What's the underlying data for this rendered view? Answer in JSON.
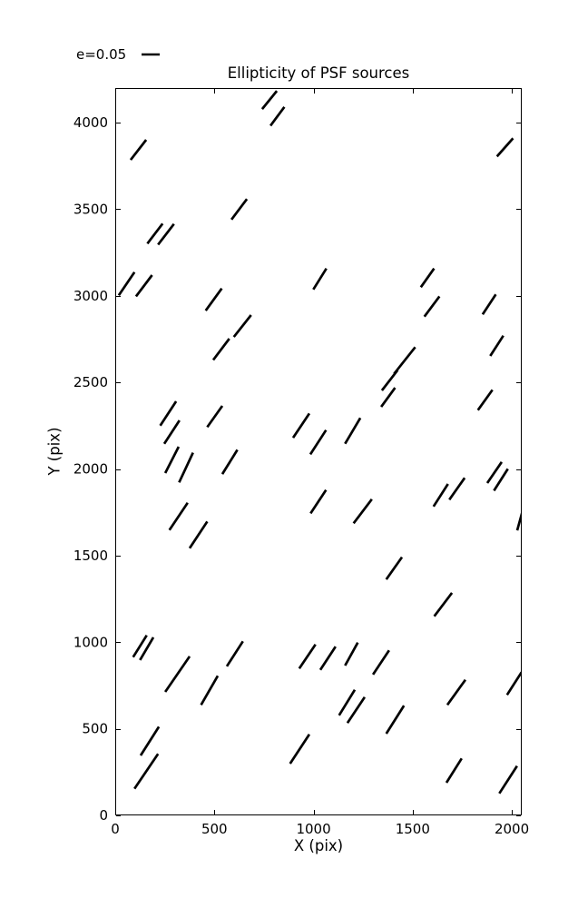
{
  "figure": {
    "title": "Ellipticity of PSF sources",
    "xlabel": "X (pix)",
    "ylabel": "Y (pix)",
    "legend_label": "e=0.05",
    "line_color": "#000000",
    "background_color": "#ffffff"
  },
  "chart_data": {
    "type": "scatter",
    "subtype": "whisker-quiver-plot-of-ellipticity-sticks",
    "title": "Ellipticity of PSF sources",
    "xlabel": "X (pix)",
    "ylabel": "Y (pix)",
    "xlim": [
      0,
      2050
    ],
    "ylim": [
      0,
      4200
    ],
    "xticks": [
      0,
      500,
      1000,
      1500,
      2000
    ],
    "yticks": [
      0,
      500,
      1000,
      1500,
      2000,
      2500,
      3000,
      3500,
      4000
    ],
    "grid": false,
    "legend": {
      "label": "e=0.05",
      "position": "upper-left-outside",
      "sample_length_data_units": 82
    },
    "line_color": "#000000",
    "segments": [
      [
        78,
        3785,
        156,
        3901
      ],
      [
        162,
        3302,
        239,
        3417
      ],
      [
        216,
        3296,
        296,
        3415
      ],
      [
        586,
        3441,
        664,
        3559
      ],
      [
        741,
        4079,
        815,
        4184
      ],
      [
        783,
        3983,
        853,
        4091
      ],
      [
        1925,
        3805,
        2006,
        3910
      ],
      [
        18,
        3003,
        97,
        3137
      ],
      [
        105,
        2997,
        186,
        3120
      ],
      [
        456,
        2915,
        537,
        3043
      ],
      [
        494,
        2630,
        575,
        2753
      ],
      [
        598,
        2763,
        685,
        2889
      ],
      [
        227,
        2251,
        307,
        2391
      ],
      [
        247,
        2146,
        324,
        2281
      ],
      [
        464,
        2242,
        540,
        2365
      ],
      [
        999,
        3037,
        1065,
        3158
      ],
      [
        897,
        2181,
        979,
        2321
      ],
      [
        984,
        2085,
        1063,
        2225
      ],
      [
        1159,
        2146,
        1236,
        2295
      ],
      [
        1541,
        3050,
        1608,
        3158
      ],
      [
        1559,
        2880,
        1635,
        2997
      ],
      [
        1853,
        2893,
        1919,
        3008
      ],
      [
        1891,
        2653,
        1957,
        2770
      ],
      [
        1345,
        2454,
        1424,
        2571
      ],
      [
        1406,
        2550,
        1513,
        2704
      ],
      [
        1341,
        2359,
        1411,
        2469
      ],
      [
        252,
        1977,
        320,
        2129
      ],
      [
        322,
        1923,
        392,
        2094
      ],
      [
        540,
        1971,
        616,
        2111
      ],
      [
        273,
        1648,
        365,
        1805
      ],
      [
        375,
        1543,
        464,
        1697
      ],
      [
        985,
        1744,
        1063,
        1879
      ],
      [
        1202,
        1687,
        1294,
        1826
      ],
      [
        1605,
        1784,
        1678,
        1914
      ],
      [
        1685,
        1823,
        1762,
        1949
      ],
      [
        1876,
        1919,
        1949,
        2041
      ],
      [
        1910,
        1875,
        1980,
        2001
      ],
      [
        2027,
        1646,
        2055,
        1762
      ],
      [
        1367,
        1363,
        1446,
        1491
      ],
      [
        1609,
        1150,
        1698,
        1285
      ],
      [
        90,
        914,
        159,
        1040
      ],
      [
        125,
        897,
        192,
        1028
      ],
      [
        252,
        713,
        375,
        918
      ],
      [
        563,
        861,
        644,
        1005
      ],
      [
        433,
        638,
        517,
        806
      ],
      [
        128,
        346,
        220,
        512
      ],
      [
        97,
        154,
        216,
        355
      ],
      [
        928,
        848,
        1010,
        987
      ],
      [
        1034,
        840,
        1111,
        975
      ],
      [
        1159,
        865,
        1223,
        998
      ],
      [
        1300,
        813,
        1381,
        953
      ],
      [
        1129,
        578,
        1208,
        725
      ],
      [
        1171,
        533,
        1258,
        683
      ],
      [
        882,
        299,
        979,
        468
      ],
      [
        1675,
        638,
        1766,
        783
      ],
      [
        1367,
        472,
        1456,
        634
      ],
      [
        1976,
        696,
        2049,
        827
      ],
      [
        1670,
        189,
        1747,
        329
      ],
      [
        1937,
        127,
        2026,
        285
      ],
      [
        1829,
        2340,
        1902,
        2457
      ]
    ]
  }
}
